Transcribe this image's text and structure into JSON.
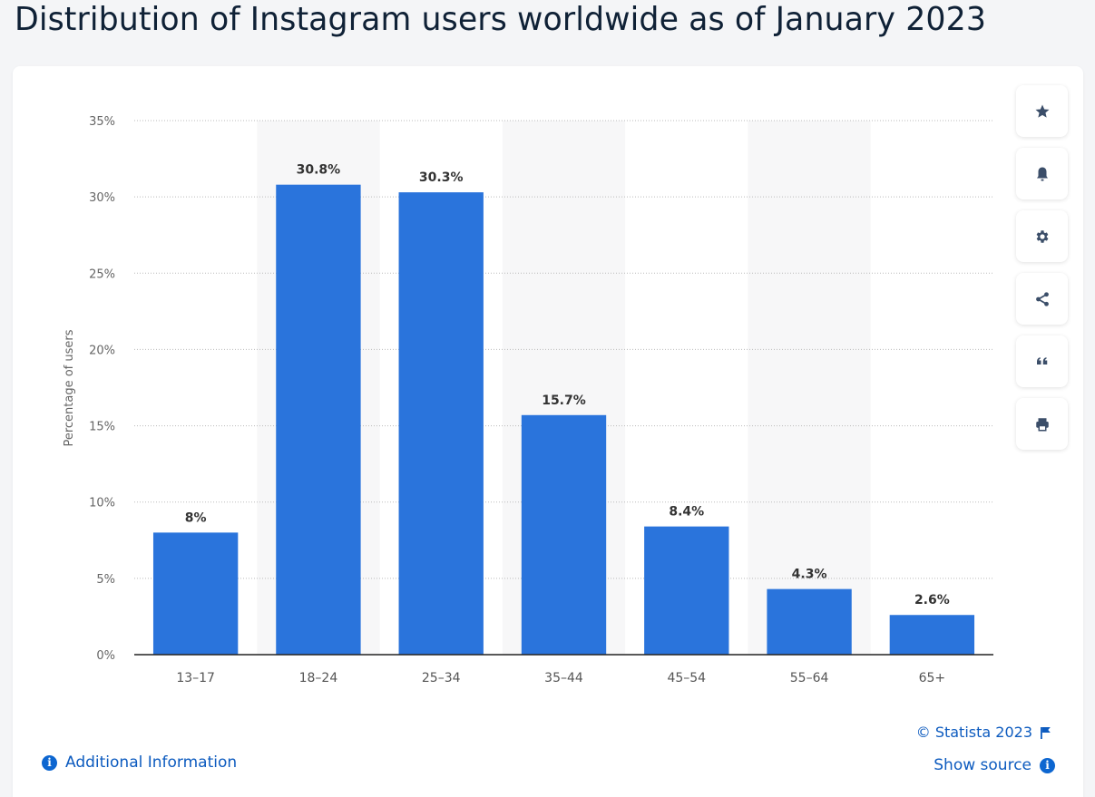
{
  "page": {
    "title": "Distribution of Instagram users worldwide as of January 2023"
  },
  "toolbar": [
    {
      "name": "favorite-button",
      "icon": "star-icon"
    },
    {
      "name": "notification-button",
      "icon": "bell-icon"
    },
    {
      "name": "settings-button",
      "icon": "gear-icon"
    },
    {
      "name": "share-button",
      "icon": "share-icon"
    },
    {
      "name": "cite-button",
      "icon": "quote-icon"
    },
    {
      "name": "print-button",
      "icon": "printer-icon"
    }
  ],
  "footer": {
    "credit": "© Statista 2023",
    "additional_info": "Additional Information",
    "show_source": "Show source"
  },
  "colors": {
    "bar": "#2a74dc",
    "link": "#0d5bbf",
    "title": "#0f2136",
    "icon": "#3b4e69"
  },
  "chart_data": {
    "type": "bar",
    "title": "Distribution of Instagram users worldwide as of January 2023",
    "xlabel": "",
    "ylabel": "Percentage of users",
    "categories": [
      "13-17",
      "18-24",
      "25-34",
      "35-44",
      "45-54",
      "55-64",
      "65+"
    ],
    "values": [
      8,
      30.8,
      30.3,
      15.7,
      8.4,
      4.3,
      2.6
    ],
    "data_labels": [
      "8%",
      "30.8%",
      "30.3%",
      "15.7%",
      "8.4%",
      "4.3%",
      "2.6%"
    ],
    "ylim": [
      0,
      35
    ],
    "yticks": [
      0,
      5,
      10,
      15,
      20,
      25,
      30,
      35
    ],
    "ytick_labels": [
      "0%",
      "5%",
      "10%",
      "15%",
      "20%",
      "25%",
      "30%",
      "35%"
    ],
    "grid": true,
    "alternating_band_shading": true,
    "legend": "none"
  }
}
